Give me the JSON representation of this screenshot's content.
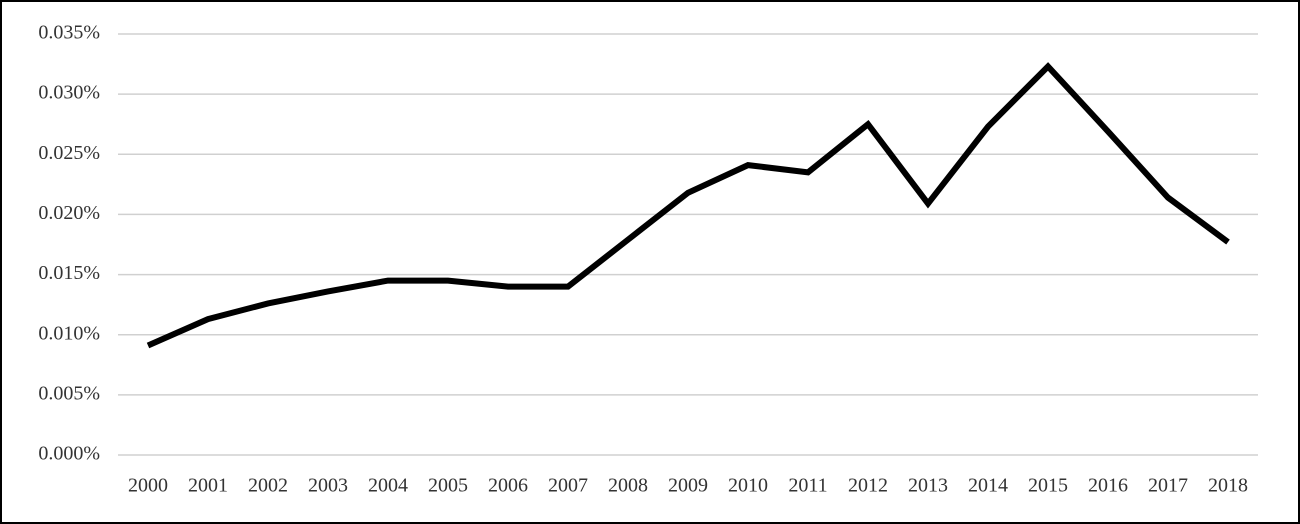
{
  "chart_data": {
    "type": "line",
    "categories": [
      "2000",
      "2001",
      "2002",
      "2003",
      "2004",
      "2005",
      "2006",
      "2007",
      "2008",
      "2009",
      "2010",
      "2011",
      "2012",
      "2013",
      "2014",
      "2015",
      "2016",
      "2017",
      "2018"
    ],
    "values": [
      0.0091,
      0.0113,
      0.0126,
      0.0136,
      0.0145,
      0.0145,
      0.014,
      0.014,
      0.0179,
      0.0218,
      0.0241,
      0.0235,
      0.0275,
      0.0209,
      0.0273,
      0.0323,
      0.0269,
      0.0214,
      0.0177
    ],
    "color": "#000000",
    "ylim": [
      0,
      0.035
    ],
    "yticks": [
      {
        "value": 0,
        "label": "0.000%"
      },
      {
        "value": 0.005,
        "label": "0.005%"
      },
      {
        "value": 0.01,
        "label": "0.010%"
      },
      {
        "value": 0.015,
        "label": "0.015%"
      },
      {
        "value": 0.02,
        "label": "0.020%"
      },
      {
        "value": 0.025,
        "label": "0.025%"
      },
      {
        "value": 0.03,
        "label": "0.030%"
      },
      {
        "value": 0.035,
        "label": "0.035%"
      }
    ],
    "grid": true
  }
}
